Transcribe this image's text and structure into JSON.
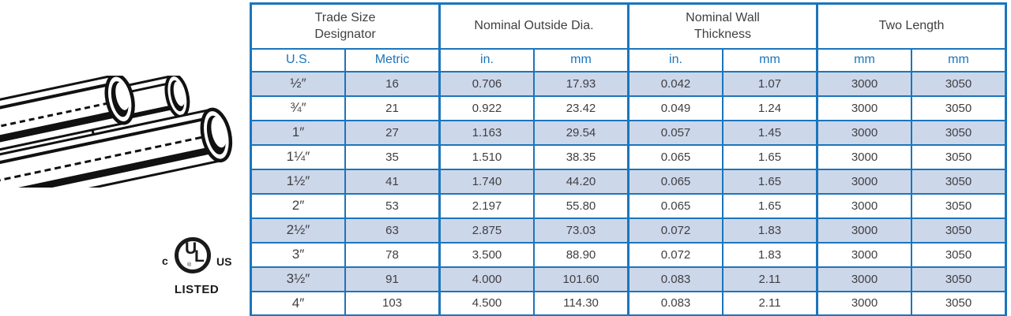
{
  "table": {
    "groups": [
      {
        "label": "Trade Size Designator"
      },
      {
        "label": "Nominal Outside Dia."
      },
      {
        "label": "Nominal Wall Thickness"
      },
      {
        "label": "Two Length"
      }
    ],
    "subheaders": [
      "U.S.",
      "Metric",
      "in.",
      "mm",
      "in.",
      "mm",
      "mm",
      "mm"
    ],
    "rows": [
      [
        "½″",
        "16",
        "0.706",
        "17.93",
        "0.042",
        "1.07",
        "3000",
        "3050"
      ],
      [
        "¾″",
        "21",
        "0.922",
        "23.42",
        "0.049",
        "1.24",
        "3000",
        "3050"
      ],
      [
        "1″",
        "27",
        "1.163",
        "29.54",
        "0.057",
        "1.45",
        "3000",
        "3050"
      ],
      [
        "1¼″",
        "35",
        "1.510",
        "38.35",
        "0.065",
        "1.65",
        "3000",
        "3050"
      ],
      [
        "1½″",
        "41",
        "1.740",
        "44.20",
        "0.065",
        "1.65",
        "3000",
        "3050"
      ],
      [
        "2″",
        "53",
        "2.197",
        "55.80",
        "0.065",
        "1.65",
        "3000",
        "3050"
      ],
      [
        "2½″",
        "63",
        "2.875",
        "73.03",
        "0.072",
        "1.83",
        "3000",
        "3050"
      ],
      [
        "3″",
        "78",
        "3.500",
        "88.90",
        "0.072",
        "1.83",
        "3000",
        "3050"
      ],
      [
        "3½″",
        "91",
        "4.000",
        "101.60",
        "0.083",
        "2.11",
        "3000",
        "3050"
      ],
      [
        "4″",
        "103",
        "4.500",
        "114.30",
        "0.083",
        "2.11",
        "3000",
        "3050"
      ]
    ]
  },
  "ul_logo": {
    "left_text": "c",
    "letter_u": "U",
    "letter_l": "L",
    "registered": "®",
    "right_text": "US",
    "listed_text": "LISTED"
  },
  "colors": {
    "accent_blue": "#1b75bc",
    "row_shade": "#cdd7ea",
    "text_dark": "#3f3f41",
    "logo_black": "#1a1a1a"
  }
}
